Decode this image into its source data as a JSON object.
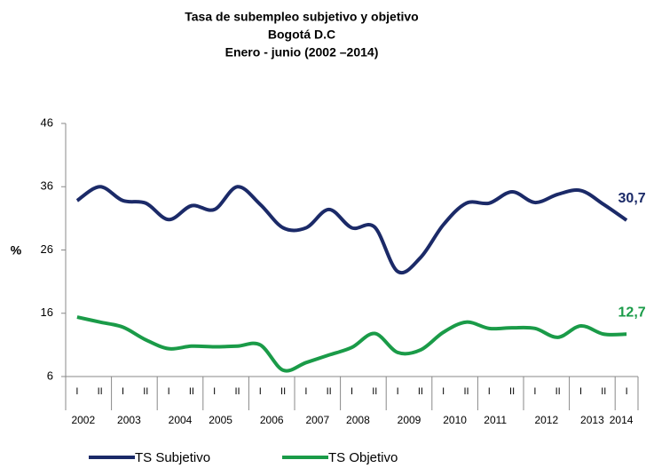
{
  "chart_data": {
    "type": "line",
    "title": [
      "Tasa de subempleo subjetivo y objetivo",
      "Bogotá D.C",
      "Enero - junio (2002 –2014)"
    ],
    "ylabel": "%",
    "categories": [
      "I",
      "II",
      "I",
      "II",
      "I",
      "II",
      "I",
      "II",
      "I",
      "II",
      "I",
      "II",
      "I",
      "II",
      "I",
      "II",
      "I",
      "II",
      "I",
      "II",
      "I",
      "II",
      "I",
      "II",
      "I"
    ],
    "years": [
      "2002",
      "2003",
      "2004",
      "2005",
      "2006",
      "2007",
      "2008",
      "2009",
      "2010",
      "2011",
      "2012",
      "2013",
      "2014"
    ],
    "ylim": [
      6,
      46
    ],
    "yticks": [
      6,
      16,
      26,
      36,
      46
    ],
    "grid": false,
    "series": [
      {
        "name": "TS Subjetivo",
        "color": "#1b2a68",
        "values": [
          33.8,
          36.0,
          33.8,
          33.4,
          30.8,
          33.0,
          32.4,
          36.0,
          33.2,
          29.5,
          29.5,
          32.4,
          29.5,
          29.6,
          22.6,
          24.8,
          30.0,
          33.4,
          33.4,
          35.2,
          33.5,
          34.8,
          35.4,
          33.2,
          30.7
        ],
        "value_labels": [
          null,
          null,
          null,
          null,
          null,
          null,
          null,
          null,
          null,
          null,
          null,
          null,
          null,
          null,
          null,
          null,
          null,
          null,
          null,
          null,
          null,
          null,
          null,
          null,
          "30,7"
        ]
      },
      {
        "name": "TS Objetivo",
        "color": "#1a9b48",
        "values": [
          15.4,
          14.6,
          13.8,
          11.8,
          10.4,
          10.8,
          10.7,
          10.8,
          11.0,
          7.0,
          8.2,
          9.4,
          10.6,
          12.8,
          9.8,
          10.2,
          13.0,
          14.6,
          13.6,
          13.7,
          13.6,
          12.2,
          14.0,
          12.7,
          12.7
        ],
        "value_labels": [
          null,
          null,
          null,
          null,
          null,
          null,
          null,
          null,
          null,
          null,
          null,
          null,
          null,
          null,
          null,
          null,
          null,
          null,
          null,
          null,
          null,
          null,
          null,
          null,
          "12,7"
        ]
      }
    ]
  }
}
